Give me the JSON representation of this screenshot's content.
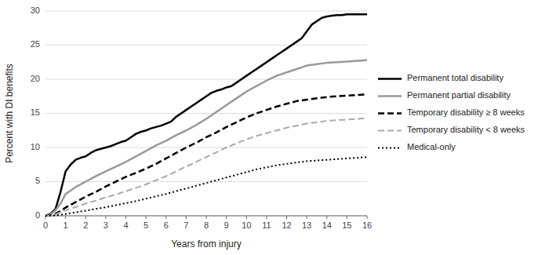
{
  "chart_data": {
    "type": "line",
    "xlabel": "Years from injury",
    "ylabel": "Percent with DI benefits",
    "xlim": [
      0,
      16
    ],
    "ylim": [
      0,
      30
    ],
    "xticks": [
      0,
      1,
      2,
      3,
      4,
      5,
      6,
      7,
      8,
      9,
      10,
      11,
      12,
      13,
      14,
      15,
      16
    ],
    "yticks": [
      0,
      5,
      10,
      15,
      20,
      25,
      30
    ],
    "grid": true,
    "legend": "right",
    "series": [
      {
        "name": "Permanent total disability",
        "color": "#000000",
        "line_style": "solid",
        "x": [
          0,
          0.25,
          0.5,
          0.75,
          1.0,
          1.25,
          1.5,
          1.75,
          2.0,
          2.25,
          2.5,
          2.75,
          3.0,
          3.25,
          3.5,
          3.75,
          4.0,
          4.25,
          4.5,
          4.75,
          5.0,
          5.25,
          5.5,
          5.75,
          6.0,
          6.25,
          6.5,
          6.75,
          7.0,
          7.25,
          7.5,
          7.75,
          8.0,
          8.25,
          8.5,
          8.75,
          9.0,
          9.25,
          9.5,
          9.75,
          10.0,
          10.25,
          10.5,
          10.75,
          11.0,
          11.25,
          11.5,
          11.75,
          12.0,
          12.25,
          12.5,
          12.75,
          13.0,
          13.25,
          13.5,
          13.75,
          14.0,
          14.25,
          14.5,
          14.75,
          15.0,
          15.25,
          15.5,
          15.75,
          16.0
        ],
        "values": [
          0,
          0.3,
          1.0,
          3.5,
          6.5,
          7.5,
          8.2,
          8.5,
          8.7,
          9.2,
          9.6,
          9.8,
          10.0,
          10.2,
          10.5,
          10.8,
          11.0,
          11.5,
          12.0,
          12.3,
          12.5,
          12.8,
          13.0,
          13.2,
          13.5,
          13.8,
          14.5,
          15.0,
          15.5,
          16.0,
          16.5,
          17.0,
          17.5,
          18.0,
          18.3,
          18.5,
          18.8,
          19.0,
          19.5,
          20.0,
          20.5,
          21.0,
          21.5,
          22.0,
          22.5,
          23.0,
          23.5,
          24.0,
          24.5,
          25.0,
          25.5,
          26.0,
          27.0,
          28.0,
          28.5,
          29.0,
          29.2,
          29.3,
          29.4,
          29.4,
          29.5,
          29.5,
          29.5,
          29.5,
          29.5
        ]
      },
      {
        "name": "Permanent partial disability",
        "color": "#999999",
        "line_style": "solid",
        "x": [
          0,
          0.25,
          0.5,
          0.75,
          1.0,
          1.5,
          2.0,
          2.5,
          3.0,
          3.5,
          4.0,
          4.5,
          5.0,
          5.5,
          6.0,
          6.5,
          7.0,
          7.5,
          8.0,
          8.5,
          9.0,
          9.5,
          10.0,
          10.5,
          11.0,
          11.5,
          12.0,
          12.5,
          13.0,
          13.5,
          14.0,
          14.5,
          15.0,
          15.5,
          16.0
        ],
        "values": [
          0,
          0.2,
          0.8,
          1.8,
          3.2,
          4.2,
          5.0,
          5.8,
          6.5,
          7.2,
          7.9,
          8.7,
          9.5,
          10.3,
          11.0,
          11.8,
          12.5,
          13.3,
          14.2,
          15.2,
          16.2,
          17.2,
          18.2,
          19.0,
          19.8,
          20.5,
          21.0,
          21.5,
          22.0,
          22.2,
          22.4,
          22.5,
          22.6,
          22.7,
          22.8
        ]
      },
      {
        "name": "Temporary disability ≥ 8 weeks",
        "color": "#000000",
        "line_style": "dashed",
        "x": [
          0,
          0.25,
          0.5,
          0.75,
          1.0,
          1.5,
          2.0,
          2.5,
          3.0,
          3.5,
          4.0,
          4.5,
          5.0,
          5.5,
          6.0,
          6.5,
          7.0,
          7.5,
          8.0,
          8.5,
          9.0,
          9.5,
          10.0,
          10.5,
          11.0,
          11.5,
          12.0,
          12.5,
          13.0,
          13.5,
          14.0,
          14.5,
          15.0,
          15.5,
          16.0
        ],
        "values": [
          0,
          0.1,
          0.3,
          0.7,
          1.2,
          2.0,
          2.8,
          3.5,
          4.3,
          5.0,
          5.7,
          6.3,
          6.9,
          7.6,
          8.4,
          9.2,
          10.0,
          10.7,
          11.5,
          12.2,
          13.0,
          13.7,
          14.4,
          15.0,
          15.5,
          16.0,
          16.4,
          16.8,
          17.0,
          17.2,
          17.4,
          17.5,
          17.6,
          17.7,
          17.8
        ]
      },
      {
        "name": "Temporary disability < 8 weeks",
        "color": "#aaaaaa",
        "line_style": "dashed",
        "x": [
          0,
          0.25,
          0.5,
          0.75,
          1.0,
          1.5,
          2.0,
          2.5,
          3.0,
          3.5,
          4.0,
          4.5,
          5.0,
          5.5,
          6.0,
          6.5,
          7.0,
          7.5,
          8.0,
          8.5,
          9.0,
          9.5,
          10.0,
          10.5,
          11.0,
          11.5,
          12.0,
          12.5,
          13.0,
          13.5,
          14.0,
          14.5,
          15.0,
          15.5,
          16.0
        ],
        "values": [
          0,
          0.05,
          0.2,
          0.5,
          0.8,
          1.3,
          1.8,
          2.2,
          2.7,
          3.1,
          3.6,
          4.1,
          4.6,
          5.2,
          5.8,
          6.5,
          7.2,
          7.9,
          8.6,
          9.3,
          10.0,
          10.6,
          11.2,
          11.7,
          12.1,
          12.5,
          12.9,
          13.2,
          13.5,
          13.7,
          13.9,
          14.0,
          14.1,
          14.2,
          14.3
        ]
      },
      {
        "name": "Medical-only",
        "color": "#000000",
        "line_style": "dotted",
        "x": [
          0,
          0.25,
          0.5,
          0.75,
          1.0,
          1.5,
          2.0,
          2.5,
          3.0,
          3.5,
          4.0,
          4.5,
          5.0,
          5.5,
          6.0,
          6.5,
          7.0,
          7.5,
          8.0,
          8.5,
          9.0,
          9.5,
          10.0,
          10.5,
          11.0,
          11.5,
          12.0,
          12.5,
          13.0,
          13.5,
          14.0,
          14.5,
          15.0,
          15.5,
          16.0
        ],
        "values": [
          0,
          0.02,
          0.07,
          0.15,
          0.25,
          0.5,
          0.75,
          1.0,
          1.25,
          1.55,
          1.85,
          2.15,
          2.5,
          2.85,
          3.2,
          3.6,
          4.0,
          4.4,
          4.8,
          5.2,
          5.6,
          6.0,
          6.4,
          6.8,
          7.1,
          7.4,
          7.6,
          7.8,
          8.0,
          8.1,
          8.2,
          8.3,
          8.4,
          8.5,
          8.6
        ]
      }
    ]
  }
}
